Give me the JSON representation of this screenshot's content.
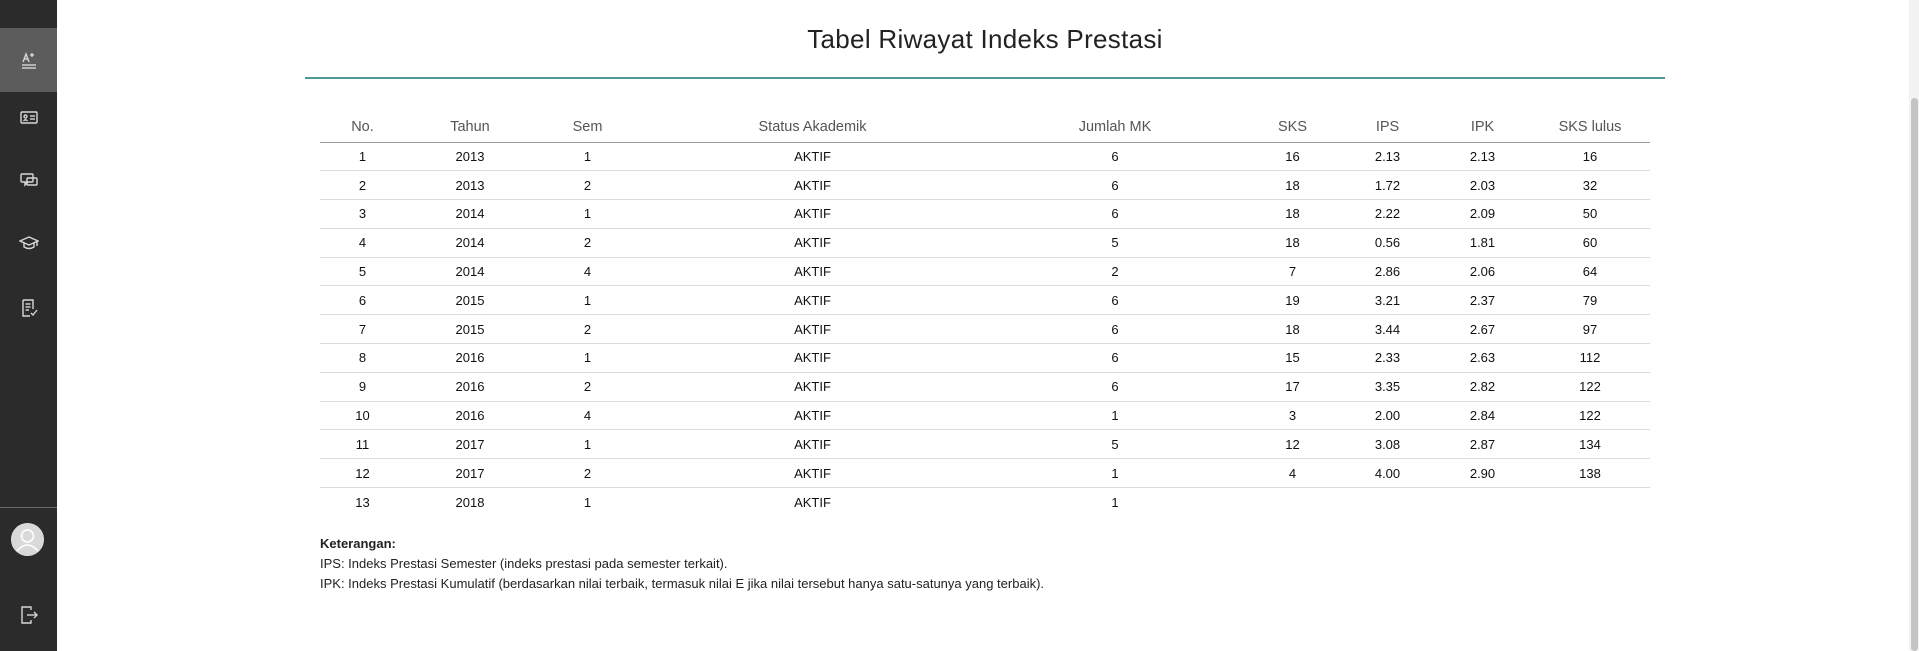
{
  "page": {
    "title": "Tabel Riwayat Indeks Prestasi"
  },
  "table": {
    "headers": [
      "No.",
      "Tahun",
      "Sem",
      "Status Akademik",
      "Jumlah MK",
      "SKS",
      "IPS",
      "IPK",
      "SKS lulus"
    ],
    "rows": [
      [
        "1",
        "2013",
        "1",
        "AKTIF",
        "6",
        "16",
        "2.13",
        "2.13",
        "16"
      ],
      [
        "2",
        "2013",
        "2",
        "AKTIF",
        "6",
        "18",
        "1.72",
        "2.03",
        "32"
      ],
      [
        "3",
        "2014",
        "1",
        "AKTIF",
        "6",
        "18",
        "2.22",
        "2.09",
        "50"
      ],
      [
        "4",
        "2014",
        "2",
        "AKTIF",
        "5",
        "18",
        "0.56",
        "1.81",
        "60"
      ],
      [
        "5",
        "2014",
        "4",
        "AKTIF",
        "2",
        "7",
        "2.86",
        "2.06",
        "64"
      ],
      [
        "6",
        "2015",
        "1",
        "AKTIF",
        "6",
        "19",
        "3.21",
        "2.37",
        "79"
      ],
      [
        "7",
        "2015",
        "2",
        "AKTIF",
        "6",
        "18",
        "3.44",
        "2.67",
        "97"
      ],
      [
        "8",
        "2016",
        "1",
        "AKTIF",
        "6",
        "15",
        "2.33",
        "2.63",
        "112"
      ],
      [
        "9",
        "2016",
        "2",
        "AKTIF",
        "6",
        "17",
        "3.35",
        "2.82",
        "122"
      ],
      [
        "10",
        "2016",
        "4",
        "AKTIF",
        "1",
        "3",
        "2.00",
        "2.84",
        "122"
      ],
      [
        "11",
        "2017",
        "1",
        "AKTIF",
        "5",
        "12",
        "3.08",
        "2.87",
        "134"
      ],
      [
        "12",
        "2017",
        "2",
        "AKTIF",
        "1",
        "4",
        "4.00",
        "2.90",
        "138"
      ],
      [
        "13",
        "2018",
        "1",
        "AKTIF",
        "1",
        "",
        "",
        "",
        ""
      ]
    ]
  },
  "notes": {
    "title": "Keterangan:",
    "ips": "IPS: Indeks Prestasi Semester (indeks prestasi pada semester terkait).",
    "ipk": "IPK: Indeks Prestasi Kumulatif (berdasarkan nilai terbaik, termasuk nilai E jika nilai tersebut hanya satu-satunya yang terbaik)."
  },
  "sidebar": {
    "icons": [
      "menu-icon",
      "grades-icon",
      "presentation-icon",
      "chat-icon",
      "graduation-cap-icon",
      "checklist-icon",
      "user-avatar",
      "logout-icon"
    ],
    "active_item": "grades-icon"
  }
}
